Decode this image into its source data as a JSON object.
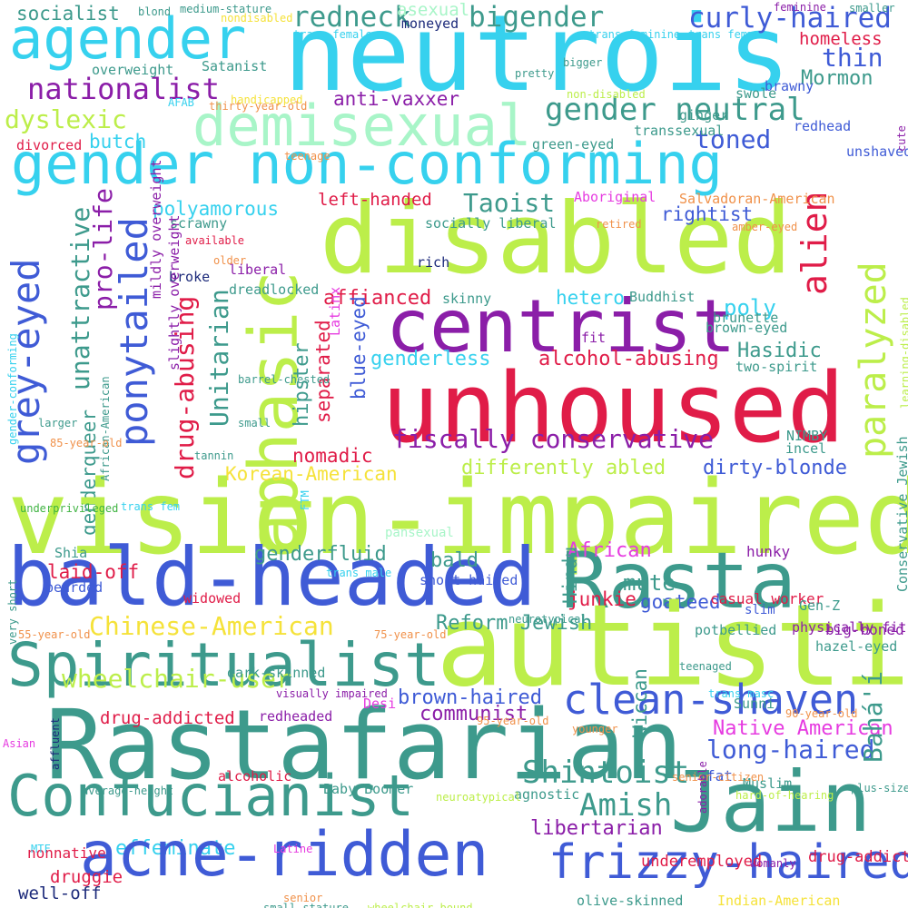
{
  "colors": {
    "background": "#ffffff",
    "cyan": "#36d1ee",
    "lime": "#bcee4a",
    "crimson": "#e01c48",
    "purple": "#8b1ea8",
    "blue": "#3f5bd6",
    "teal": "#3d9a8c",
    "mint": "#a8f5c8",
    "magenta": "#e63be0",
    "green": "#3fb342",
    "orange": "#f0914a",
    "yellow": "#f5e23a",
    "navy": "#1c2a7a"
  },
  "words": [
    {
      "text": "neutrois",
      "c": "cyan"
    },
    {
      "text": "agender",
      "c": "cyan"
    },
    {
      "text": "socialist",
      "c": "teal"
    },
    {
      "text": "redneck",
      "c": "teal"
    },
    {
      "text": "asexual",
      "c": "mint"
    },
    {
      "text": "bigender",
      "c": "teal"
    },
    {
      "text": "curly-haired",
      "c": "blue"
    },
    {
      "text": "homeless",
      "c": "crimson"
    },
    {
      "text": "thin",
      "c": "blue"
    },
    {
      "text": "nationalist",
      "c": "purple"
    },
    {
      "text": "Satanist",
      "c": "teal"
    },
    {
      "text": "Mormon",
      "c": "teal"
    },
    {
      "text": "demisexual",
      "c": "mint"
    },
    {
      "text": "anti-vaxxer",
      "c": "purple"
    },
    {
      "text": "gender neutral",
      "c": "teal"
    },
    {
      "text": "dyslexic",
      "c": "lime"
    },
    {
      "text": "butch",
      "c": "cyan"
    },
    {
      "text": "toned",
      "c": "blue"
    },
    {
      "text": "gender non-conforming",
      "c": "cyan"
    },
    {
      "text": "disabled",
      "c": "lime"
    },
    {
      "text": "aphasic",
      "c": "lime"
    },
    {
      "text": "alien",
      "c": "crimson"
    },
    {
      "text": "paralyzed",
      "c": "lime"
    },
    {
      "text": "grey-eyed",
      "c": "blue"
    },
    {
      "text": "ponytailed",
      "c": "blue"
    },
    {
      "text": "unattractive",
      "c": "teal"
    },
    {
      "text": "pro-life",
      "c": "purple"
    },
    {
      "text": "drug-abusing",
      "c": "crimson"
    },
    {
      "text": "Unitarian",
      "c": "teal"
    },
    {
      "text": "hipster",
      "c": "teal"
    },
    {
      "text": "Taoist",
      "c": "teal"
    },
    {
      "text": "left-handed",
      "c": "crimson"
    },
    {
      "text": "rightist",
      "c": "blue"
    },
    {
      "text": "polyamorous",
      "c": "cyan"
    },
    {
      "text": "liberal",
      "c": "purple"
    },
    {
      "text": "dreadlocked",
      "c": "teal"
    },
    {
      "text": "centrist",
      "c": "purple"
    },
    {
      "text": "affianced",
      "c": "crimson"
    },
    {
      "text": "hetero",
      "c": "cyan"
    },
    {
      "text": "Buddhist",
      "c": "teal"
    },
    {
      "text": "poly",
      "c": "cyan"
    },
    {
      "text": "brunette",
      "c": "teal"
    },
    {
      "text": "unhoused",
      "c": "crimson"
    },
    {
      "text": "genderless",
      "c": "cyan"
    },
    {
      "text": "alcohol-abusing",
      "c": "crimson"
    },
    {
      "text": "Hasidic",
      "c": "teal"
    },
    {
      "text": "separated",
      "c": "crimson"
    },
    {
      "text": "blue-eyed",
      "c": "blue"
    },
    {
      "text": "fiscally conservative",
      "c": "purple"
    },
    {
      "text": "nomadic",
      "c": "crimson"
    },
    {
      "text": "Korean-American",
      "c": "yellow"
    },
    {
      "text": "differently abled",
      "c": "lime"
    },
    {
      "text": "dirty-blonde",
      "c": "blue"
    },
    {
      "text": "genderqueer",
      "c": "teal"
    },
    {
      "text": "vision-impaired",
      "c": "lime"
    },
    {
      "text": "bald-headed",
      "c": "blue"
    },
    {
      "text": "Rasta",
      "c": "teal"
    },
    {
      "text": "laid-off",
      "c": "crimson"
    },
    {
      "text": "genderfluid",
      "c": "teal"
    },
    {
      "text": "African",
      "c": "magenta"
    },
    {
      "text": "mute",
      "c": "teal"
    },
    {
      "text": "junkie",
      "c": "crimson"
    },
    {
      "text": "goateed",
      "c": "blue"
    },
    {
      "text": "Chinese-American",
      "c": "yellow"
    },
    {
      "text": "autistic",
      "c": "lime"
    },
    {
      "text": "Spiritualist",
      "c": "teal"
    },
    {
      "text": "Reform Jewish",
      "c": "teal"
    },
    {
      "text": "wheelchair-user",
      "c": "lime"
    },
    {
      "text": "clean-shaven",
      "c": "blue"
    },
    {
      "text": "brown-haired",
      "c": "blue"
    },
    {
      "text": "communist",
      "c": "purple"
    },
    {
      "text": "Rastafarian",
      "c": "teal"
    },
    {
      "text": "long-haired",
      "c": "blue"
    },
    {
      "text": "Native American",
      "c": "magenta"
    },
    {
      "text": "drug-addicted",
      "c": "crimson"
    },
    {
      "text": "Confucianist",
      "c": "teal"
    },
    {
      "text": "Jain",
      "c": "teal"
    },
    {
      "text": "Shintoist",
      "c": "teal"
    },
    {
      "text": "Amish",
      "c": "teal"
    },
    {
      "text": "effeminate",
      "c": "cyan"
    },
    {
      "text": "acne-ridden",
      "c": "blue"
    },
    {
      "text": "frizzy-haired",
      "c": "blue"
    },
    {
      "text": "libertarian",
      "c": "purple"
    },
    {
      "text": "Bahá'í",
      "c": "teal"
    },
    {
      "text": "druggie",
      "c": "crimson"
    },
    {
      "text": "nonnative",
      "c": "crimson"
    },
    {
      "text": "well-off",
      "c": "navy"
    },
    {
      "text": "Indian-American",
      "c": "yellow"
    },
    {
      "text": "olive-skinned",
      "c": "teal"
    },
    {
      "text": "drug-addict",
      "c": "crimson"
    },
    {
      "text": "underemployed",
      "c": "crimson"
    },
    {
      "text": "alcoholic",
      "c": "crimson"
    },
    {
      "text": "Baby Boomer",
      "c": "teal"
    },
    {
      "text": "Muslim",
      "c": "teal"
    },
    {
      "text": "fat",
      "c": "blue"
    },
    {
      "text": "agnostic",
      "c": "teal"
    },
    {
      "text": "casual worker",
      "c": "crimson"
    },
    {
      "text": "widowed",
      "c": "crimson"
    },
    {
      "text": "bearded",
      "c": "blue"
    },
    {
      "text": "short-haired",
      "c": "blue"
    },
    {
      "text": "bald",
      "c": "teal"
    },
    {
      "text": "Hindu",
      "c": "teal"
    },
    {
      "text": "Wiccan",
      "c": "teal"
    },
    {
      "text": "Sunni",
      "c": "teal"
    },
    {
      "text": "Desi",
      "c": "magenta"
    },
    {
      "text": "redheaded",
      "c": "purple"
    },
    {
      "text": "dark-skinned",
      "c": "teal"
    },
    {
      "text": "Shia",
      "c": "teal"
    },
    {
      "text": "incel",
      "c": "teal"
    },
    {
      "text": "Gen-Z",
      "c": "teal"
    },
    {
      "text": "hazel-eyed",
      "c": "teal"
    },
    {
      "text": "Conservative Jewish",
      "c": "teal"
    },
    {
      "text": "slim",
      "c": "blue"
    },
    {
      "text": "potbellied",
      "c": "teal"
    },
    {
      "text": "physically fit",
      "c": "purple"
    },
    {
      "text": "big-boned",
      "c": "purple"
    },
    {
      "text": "hunky",
      "c": "purple"
    },
    {
      "text": "NIMBY",
      "c": "teal"
    },
    {
      "text": "learning-disabled",
      "c": "lime"
    },
    {
      "text": "two-spirit",
      "c": "teal"
    },
    {
      "text": "brown-eyed",
      "c": "teal"
    },
    {
      "text": "fit",
      "c": "purple"
    },
    {
      "text": "Latinx",
      "c": "magenta"
    },
    {
      "text": "skinny",
      "c": "teal"
    },
    {
      "text": "rich",
      "c": "navy"
    },
    {
      "text": "socially liberal",
      "c": "teal"
    },
    {
      "text": "Aboriginal",
      "c": "magenta"
    },
    {
      "text": "Salvadoran-American",
      "c": "orange"
    },
    {
      "text": "amber-eyed",
      "c": "orange"
    },
    {
      "text": "retired",
      "c": "orange"
    },
    {
      "text": "scrawny",
      "c": "teal"
    },
    {
      "text": "broke",
      "c": "navy"
    },
    {
      "text": "available",
      "c": "crimson"
    },
    {
      "text": "older",
      "c": "orange"
    },
    {
      "text": "mildly overweight",
      "c": "purple"
    },
    {
      "text": "overweight",
      "c": "teal"
    },
    {
      "text": "slightly overweight",
      "c": "purple"
    },
    {
      "text": "divorced",
      "c": "crimson"
    },
    {
      "text": "teenage",
      "c": "orange"
    },
    {
      "text": "green-eyed",
      "c": "teal"
    },
    {
      "text": "transsexual",
      "c": "teal"
    },
    {
      "text": "unshaved",
      "c": "blue"
    },
    {
      "text": "redhead",
      "c": "blue"
    },
    {
      "text": "cute",
      "c": "purple"
    },
    {
      "text": "ginger",
      "c": "teal"
    },
    {
      "text": "swole",
      "c": "teal"
    },
    {
      "text": "brawny",
      "c": "blue"
    },
    {
      "text": "non-disabled",
      "c": "lime"
    },
    {
      "text": "handicapped",
      "c": "yellow"
    },
    {
      "text": "thirty-year-old",
      "c": "orange"
    },
    {
      "text": "AFAB",
      "c": "cyan"
    },
    {
      "text": "pretty",
      "c": "teal"
    },
    {
      "text": "bigger",
      "c": "teal"
    },
    {
      "text": "moneyed",
      "c": "navy"
    },
    {
      "text": "blond",
      "c": "teal"
    },
    {
      "text": "medium-stature",
      "c": "teal"
    },
    {
      "text": "nondisabled",
      "c": "yellow"
    },
    {
      "text": "trans female",
      "c": "cyan"
    },
    {
      "text": "trans feminine",
      "c": "cyan"
    },
    {
      "text": "trans femme",
      "c": "cyan"
    },
    {
      "text": "feminine",
      "c": "purple"
    },
    {
      "text": "smaller",
      "c": "teal"
    },
    {
      "text": "gender-conforming",
      "c": "cyan"
    },
    {
      "text": "larger",
      "c": "teal"
    },
    {
      "text": "underprivileged",
      "c": "green"
    },
    {
      "text": "African-American",
      "c": "teal"
    },
    {
      "text": "85-year-old",
      "c": "orange"
    },
    {
      "text": "barrel-chested",
      "c": "teal"
    },
    {
      "text": "small",
      "c": "teal"
    },
    {
      "text": "tannin",
      "c": "teal"
    },
    {
      "text": "trans fem",
      "c": "cyan"
    },
    {
      "text": "FTM",
      "c": "cyan"
    },
    {
      "text": "pansexual",
      "c": "mint"
    },
    {
      "text": "trans male",
      "c": "cyan"
    },
    {
      "text": "neurotypical",
      "c": "teal"
    },
    {
      "text": "very short",
      "c": "teal"
    },
    {
      "text": "55-year-old",
      "c": "orange"
    },
    {
      "text": "75-year-old",
      "c": "orange"
    },
    {
      "text": "visually impaired",
      "c": "purple"
    },
    {
      "text": "teenaged",
      "c": "teal"
    },
    {
      "text": "trans masc",
      "c": "cyan"
    },
    {
      "text": "90-year-old",
      "c": "orange"
    },
    {
      "text": "Asian",
      "c": "magenta"
    },
    {
      "text": "affluent",
      "c": "navy"
    },
    {
      "text": "younger",
      "c": "orange"
    },
    {
      "text": "95-year-old",
      "c": "orange"
    },
    {
      "text": "senior-citizen",
      "c": "orange"
    },
    {
      "text": "hard-of-hearing",
      "c": "lime"
    },
    {
      "text": "plus-sized",
      "c": "teal"
    },
    {
      "text": "average-height",
      "c": "teal"
    },
    {
      "text": "neuroatypical",
      "c": "lime"
    },
    {
      "text": "adorable",
      "c": "purple"
    },
    {
      "text": "MTF",
      "c": "cyan"
    },
    {
      "text": "womanly",
      "c": "purple"
    },
    {
      "text": "Latine",
      "c": "magenta"
    },
    {
      "text": "senior",
      "c": "orange"
    },
    {
      "text": "small-stature",
      "c": "teal"
    },
    {
      "text": "wheelchair-bound",
      "c": "lime"
    }
  ]
}
